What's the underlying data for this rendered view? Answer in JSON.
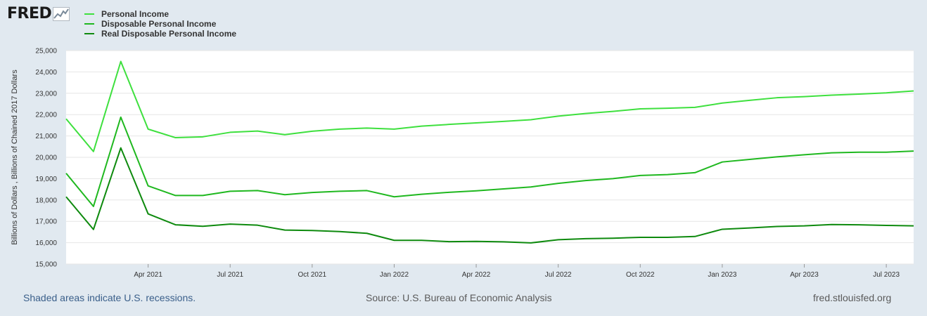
{
  "logo": {
    "text": "FRED",
    "graph_icon": "line-chart-icon"
  },
  "footer": {
    "note": "Shaded areas indicate U.S. recessions.",
    "source": "Source: U.S. Bureau of Economic Analysis",
    "site": "fred.stlouisfed.org"
  },
  "chart_data": {
    "type": "line",
    "ylabel": "Billions of Dollars , Billions of Chained 2017 Dollars",
    "ylim": [
      15000,
      25000
    ],
    "yticks": [
      15000,
      16000,
      17000,
      18000,
      19000,
      20000,
      21000,
      22000,
      23000,
      24000,
      25000
    ],
    "ytick_labels": [
      "15,000",
      "16,000",
      "17,000",
      "18,000",
      "19,000",
      "20,000",
      "21,000",
      "22,000",
      "23,000",
      "24,000",
      "25,000"
    ],
    "xlim": [
      "2021-01",
      "2023-08"
    ],
    "xticks": [
      "2021-04",
      "2021-07",
      "2021-10",
      "2022-01",
      "2022-04",
      "2022-07",
      "2022-10",
      "2023-01",
      "2023-04",
      "2023-07"
    ],
    "xtick_labels": [
      "Apr 2021",
      "Jul 2021",
      "Oct 2021",
      "Jan 2022",
      "Apr 2022",
      "Jul 2022",
      "Oct 2022",
      "Jan 2023",
      "Apr 2023",
      "Jul 2023"
    ],
    "grid": "horizontal",
    "legend": "top-left",
    "x": [
      "2021-01",
      "2021-02",
      "2021-03",
      "2021-04",
      "2021-05",
      "2021-06",
      "2021-07",
      "2021-08",
      "2021-09",
      "2021-10",
      "2021-11",
      "2021-12",
      "2022-01",
      "2022-02",
      "2022-03",
      "2022-04",
      "2022-05",
      "2022-06",
      "2022-07",
      "2022-08",
      "2022-09",
      "2022-10",
      "2022-11",
      "2022-12",
      "2023-01",
      "2023-02",
      "2023-03",
      "2023-04",
      "2023-05",
      "2023-06",
      "2023-07",
      "2023-08"
    ],
    "series": [
      {
        "name": "Personal Income",
        "color": "#3ee03e",
        "values": [
          21800,
          20270,
          24490,
          21320,
          20920,
          20960,
          21170,
          21230,
          21060,
          21220,
          21320,
          21370,
          21320,
          21460,
          21540,
          21610,
          21680,
          21760,
          21930,
          22050,
          22150,
          22270,
          22300,
          22340,
          22540,
          22670,
          22790,
          22840,
          22910,
          22960,
          23020,
          23110
        ]
      },
      {
        "name": "Disposable Personal Income",
        "color": "#1fb81f",
        "values": [
          19250,
          17700,
          21880,
          18660,
          18210,
          18210,
          18410,
          18440,
          18250,
          18350,
          18410,
          18440,
          18150,
          18270,
          18360,
          18430,
          18520,
          18610,
          18780,
          18910,
          19000,
          19150,
          19190,
          19280,
          19780,
          19900,
          20020,
          20120,
          20210,
          20240,
          20240,
          20290
        ]
      },
      {
        "name": "Real Disposable Personal Income",
        "color": "#0e8a0e",
        "values": [
          18150,
          16620,
          20440,
          17350,
          16840,
          16770,
          16870,
          16820,
          16590,
          16570,
          16520,
          16440,
          16110,
          16110,
          16050,
          16060,
          16040,
          15990,
          16140,
          16190,
          16210,
          16250,
          16250,
          16290,
          16630,
          16690,
          16760,
          16790,
          16850,
          16840,
          16810,
          16790
        ]
      }
    ]
  }
}
